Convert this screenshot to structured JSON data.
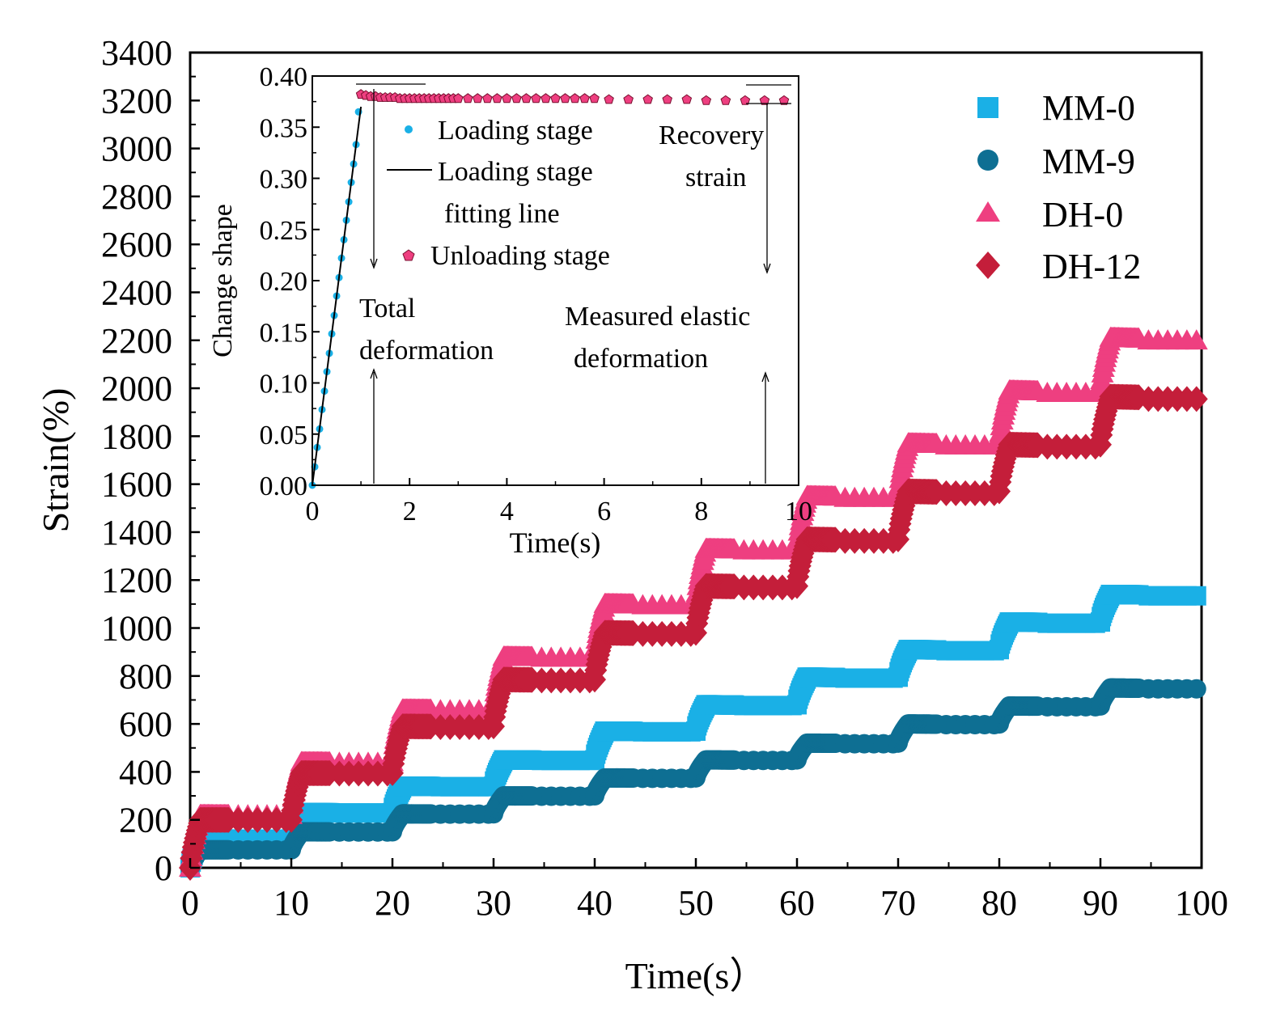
{
  "chart_data": [
    {
      "type": "scatter",
      "title": "",
      "xlabel": "Time(s）",
      "ylabel": "Strain(%)",
      "xlim": [
        0,
        100
      ],
      "ylim": [
        0,
        3400
      ],
      "xticks": [
        0,
        10,
        20,
        30,
        40,
        50,
        60,
        70,
        80,
        90,
        100
      ],
      "yticks": [
        0,
        200,
        400,
        600,
        800,
        1000,
        1200,
        1400,
        1600,
        1800,
        2000,
        2200,
        2400,
        2600,
        2800,
        3000,
        3200,
        3400
      ],
      "legend_position": "top-right",
      "colors": {
        "MM-0": "#1ab0e6",
        "MM-9": "#0e6f93",
        "DH-0": "#ee3f80",
        "DH-12": "#c41e3a"
      },
      "series": [
        {
          "name": "MM-0",
          "marker": "square",
          "plateau_levels": [
            120,
            230,
            340,
            450,
            570,
            680,
            795,
            910,
            1025,
            1140
          ]
        },
        {
          "name": "MM-9",
          "marker": "circle",
          "plateau_levels": [
            75,
            150,
            225,
            300,
            375,
            450,
            520,
            600,
            675,
            750
          ]
        },
        {
          "name": "DH-0",
          "marker": "triangle",
          "plateau_levels": [
            220,
            440,
            660,
            880,
            1100,
            1330,
            1550,
            1770,
            1990,
            2210
          ]
        },
        {
          "name": "DH-12",
          "marker": "diamond",
          "plateau_levels": [
            200,
            395,
            590,
            785,
            980,
            1175,
            1370,
            1570,
            1765,
            1965
          ]
        }
      ]
    },
    {
      "type": "scatter",
      "title": "",
      "xlabel": "Time(s)",
      "ylabel": "Change shape",
      "xlim": [
        0,
        10
      ],
      "ylim": [
        0,
        0.4
      ],
      "xticks": [
        0,
        2,
        4,
        6,
        8,
        10
      ],
      "yticks": [
        "0.00",
        "0.05",
        "0.10",
        "0.15",
        "0.20",
        "0.25",
        "0.30",
        "0.35",
        "0.40"
      ],
      "series": [
        {
          "name": "Loading stage",
          "marker": "dot",
          "color": "#1ab0e6",
          "x": [
            0,
            0.05,
            0.1,
            0.15,
            0.2,
            0.25,
            0.3,
            0.35,
            0.4,
            0.45,
            0.5,
            0.55,
            0.6,
            0.65,
            0.7,
            0.75,
            0.8,
            0.85,
            0.9,
            0.95
          ],
          "y": [
            0,
            0.018,
            0.037,
            0.055,
            0.074,
            0.092,
            0.111,
            0.129,
            0.148,
            0.166,
            0.185,
            0.203,
            0.222,
            0.24,
            0.259,
            0.277,
            0.296,
            0.314,
            0.333,
            0.365
          ]
        },
        {
          "name": "Loading stage fitting line",
          "marker": "line",
          "color": "#000000",
          "x": [
            0,
            1.0
          ],
          "y": [
            0,
            0.37
          ]
        },
        {
          "name": "Unloading stage",
          "marker": "pentagon",
          "color": "#ee3f80",
          "x": [
            1.0,
            1.1,
            1.2,
            1.3,
            1.4,
            1.5,
            1.6,
            1.7,
            1.8,
            1.9,
            2.0,
            2.1,
            2.2,
            2.3,
            2.4,
            2.5,
            2.6,
            2.7,
            2.8,
            2.9,
            3.0,
            3.2,
            3.4,
            3.6,
            3.8,
            4.0,
            4.2,
            4.4,
            4.6,
            4.8,
            5.0,
            5.2,
            5.4,
            5.6,
            5.8,
            6.1,
            6.5,
            6.9,
            7.3,
            7.7,
            8.1,
            8.5,
            8.9,
            9.3,
            9.7
          ],
          "y": [
            0.382,
            0.381,
            0.38,
            0.38,
            0.379,
            0.379,
            0.379,
            0.379,
            0.378,
            0.378,
            0.378,
            0.378,
            0.378,
            0.378,
            0.378,
            0.378,
            0.378,
            0.378,
            0.378,
            0.378,
            0.378,
            0.378,
            0.378,
            0.378,
            0.378,
            0.378,
            0.378,
            0.378,
            0.378,
            0.378,
            0.378,
            0.378,
            0.378,
            0.378,
            0.378,
            0.377,
            0.377,
            0.377,
            0.377,
            0.377,
            0.376,
            0.376,
            0.376,
            0.376,
            0.376
          ]
        }
      ],
      "legend_entries": [
        "Loading stage",
        "Loading stage",
        "fitting line",
        "Unloading stage"
      ],
      "annotations": {
        "total_1": "Total",
        "total_2": "deformation",
        "recovery_1": "Recovery",
        "recovery_2": "strain",
        "elastic_1": "Measured elastic",
        "elastic_2": "deformation"
      }
    }
  ]
}
